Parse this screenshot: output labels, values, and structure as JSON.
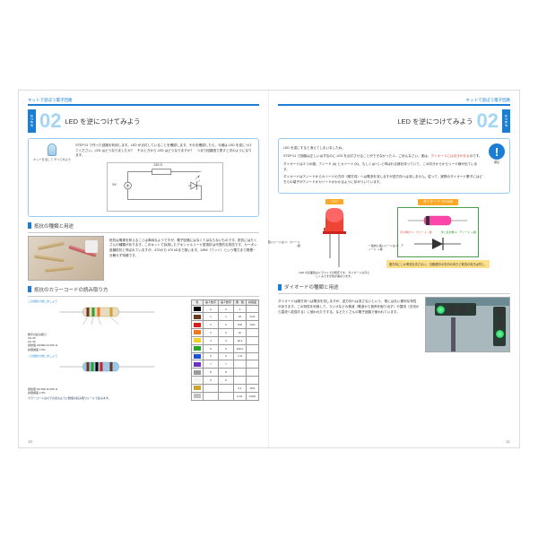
{
  "header_band": "キットで遊ぼう電子回路",
  "step": {
    "label": "STEP",
    "number": "02",
    "title": "LED を逆につけてみよう"
  },
  "left": {
    "intro_caption": "キットを出して\nやってみよう",
    "intro_text": "STEP 01 で作った回路を利用します。LED が点灯していることを確認します。それを確認したら、今度は LED を逆につけてください。LED はどうなりましたか？　そのときから LED はどうなりますか？　つまり回路図で表すと次のようになります。",
    "circuit": {
      "r_label": "220 Ω",
      "v_label": "5V"
    },
    "sec1_title": "抵抗の種類と用途",
    "sec1_text": "抵抗は電源を抑えることは単純なようですが、電子回路にはなくてはならないものです。抵抗にはたくさんの種類があります。このキットで採用したアキシャルリード型抵抗は代表的な抵抗です。カーボン皮膜抵抗と呼ばれていますが、47Ωから 470 kΩまで扱います。1/8W（ワット）という電力まで発煙・分解せず特徴です。",
    "sec2_title": "抵抗のカラーコードの読み取り方",
    "sec2_note": "カラーコードは以下の表のように数値の読み取りルールで読みます。",
    "code_example": {
      "left_head": "この抵抗で試しましょう",
      "right_head": "この抵抗で試しましょう",
      "digits_label": "数字の読み取り",
      "pair1": "CG 05",
      "pair2": "CG 06",
      "mult1": "抵抗値 150000 Ω=15K Ω",
      "tol_label": "許容誤差 ± 5%",
      "mult2": "抵抗値 15×000 Ω=15K Ω"
    },
    "color_table": {
      "headers": [
        "色",
        "第１数字",
        "第２数字",
        "乗　数",
        "許容差"
      ],
      "rows": [
        {
          "name": "黒",
          "swatch": "#000000",
          "d": "0",
          "m": "1",
          "t": ""
        },
        {
          "name": "茶",
          "swatch": "#6b3a1e",
          "d": "1",
          "m": "10",
          "t": "±1%"
        },
        {
          "name": "赤",
          "swatch": "#d62020",
          "d": "2",
          "m": "100",
          "t": "±2%"
        },
        {
          "name": "橙",
          "swatch": "#f07820",
          "d": "3",
          "m": "1k",
          "t": ""
        },
        {
          "name": "黄",
          "swatch": "#f5d020",
          "d": "4",
          "m": "10 k",
          "t": ""
        },
        {
          "name": "緑",
          "swatch": "#2ea02e",
          "d": "5",
          "m": "100 k",
          "t": ""
        },
        {
          "name": "青",
          "swatch": "#2050d0",
          "d": "6",
          "m": "1 M",
          "t": ""
        },
        {
          "name": "紫",
          "swatch": "#7030c0",
          "d": "7",
          "m": "",
          "t": ""
        },
        {
          "name": "灰",
          "swatch": "#9a9a9a",
          "d": "8",
          "m": "",
          "t": ""
        },
        {
          "name": "白",
          "swatch": "#f5f5f5",
          "d": "9",
          "m": "",
          "t": ""
        },
        {
          "name": "金",
          "swatch": "#cda434",
          "d": "",
          "m": "0.1",
          "t": "±5%"
        },
        {
          "name": "銀",
          "swatch": "#c0c0c0",
          "d": "",
          "m": "0.01",
          "t": "±10%"
        }
      ]
    },
    "page_number": "10"
  },
  "right": {
    "intro1": "LED を逆にすると消えてしまいましたね。",
    "intro2a": "STEP 01 で回路は正しいはずなのに LED を点灯させることができなかった人…ごめんなさい。実は、",
    "intro2b": "ダイオードには向きがある",
    "intro2c": "のです。",
    "intro3": "ダイオードは２つの極、アノード (A) とカソード (K)、もしくは+と-と呼ばれる極を持っていて、この向きからからリード線が出ています。",
    "intro4": "ダイオードはアノードからカソードの方向（順方向）へは電流を流しますが逆方向へは流しません。従って、実際のダイオード素子にはどちらの端子がアノードかカソードかわかるように印がついています。",
    "excl_caption": "補足",
    "led_label": "LED",
    "diode_label": "ダイオード 1S1588",
    "lead_long": "一般的に長いリードは\nA：アノード\n＋極",
    "lead_short": "短いリードは\nC：カソード\n−極",
    "diode_k": "帯の側が\nC：カソード\n−極",
    "diode_a": "帯と反対側\nA：アノード\n＋極",
    "led_note": "LED の表面色はイラストでの想定です。\nダイオードも同じしくみですが色が異なります。",
    "diode_note": "順方向にしか電流を流さない。\n回路図中の矢印の向きと電流の向きは同じ。",
    "sec1_title": "ダイオードの種類と用途",
    "sec1_text": "ダイオードは順方向へは電流を流しますが、逆方向へは流さないという、他にはない便利な特性があります。この特性を利用して、ラジオなどの検波（電波から音声を取り出す）や整流（交流から直流へ変換する）に使われたりする、などたくさんの電子回路で使われています。",
    "page_number": "11"
  }
}
